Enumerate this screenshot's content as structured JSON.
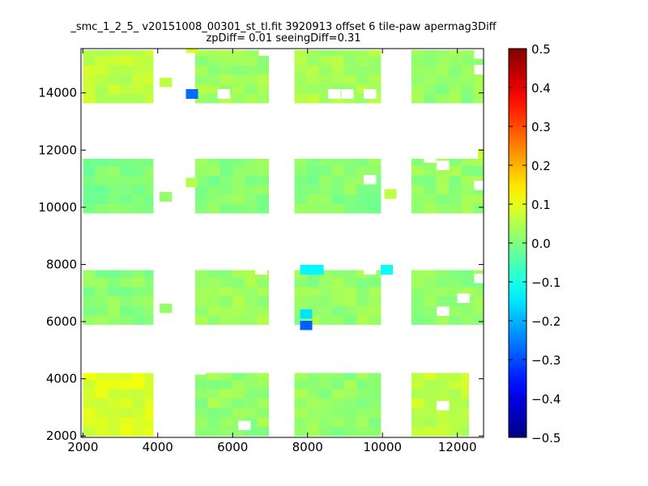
{
  "chart_data": {
    "type": "heatmap",
    "title_line1": "_smc_1_2_5_ v20151008_00301_st_tl.fit 3920913 offset 6 tile-paw apermag3Diff",
    "title_line2": "zpDiff= 0.01 seeingDiff=0.31",
    "xlabel": "",
    "ylabel": "",
    "xlim": [
      1950,
      12700
    ],
    "ylim": [
      1950,
      15550
    ],
    "x_ticks": [
      2000,
      4000,
      6000,
      8000,
      10000,
      12000
    ],
    "y_ticks": [
      2000,
      4000,
      6000,
      8000,
      10000,
      12000,
      14000
    ],
    "cell_size": 330,
    "colorbar": {
      "colormap": "jet",
      "vmin": -0.5,
      "vmax": 0.5,
      "ticks": [
        "0.5",
        "0.4",
        "0.3",
        "0.2",
        "0.1",
        "0.0",
        "−0.1",
        "−0.2",
        "−0.3",
        "−0.4",
        "−0.5"
      ]
    },
    "blocks": [
      {
        "x0": 2000,
        "x1": 3870,
        "y0": 2000,
        "y1": 4200,
        "value": 0.09
      },
      {
        "x0": 5000,
        "x1": 6960,
        "y0": 2000,
        "y1": 4200,
        "value": 0.02
      },
      {
        "x0": 7650,
        "x1": 9950,
        "y0": 2000,
        "y1": 4200,
        "value": 0.02
      },
      {
        "x0": 10780,
        "x1": 12300,
        "y0": 2000,
        "y1": 4200,
        "value": 0.06
      },
      {
        "x0": 2000,
        "x1": 3870,
        "y0": 5900,
        "y1": 7800,
        "value": 0.01
      },
      {
        "x0": 5000,
        "x1": 6960,
        "y0": 5900,
        "y1": 7800,
        "value": 0.03
      },
      {
        "x0": 7650,
        "x1": 9950,
        "y0": 5900,
        "y1": 7800,
        "value": 0.02
      },
      {
        "x0": 10780,
        "x1": 12700,
        "y0": 5900,
        "y1": 7800,
        "value": 0.02
      },
      {
        "x0": 2000,
        "x1": 3870,
        "y0": 9800,
        "y1": 11700,
        "value": 0.0
      },
      {
        "x0": 5000,
        "x1": 6960,
        "y0": 9800,
        "y1": 11700,
        "value": 0.01
      },
      {
        "x0": 7650,
        "x1": 9950,
        "y0": 9800,
        "y1": 11700,
        "value": 0.01
      },
      {
        "x0": 10780,
        "x1": 12700,
        "y0": 9800,
        "y1": 11700,
        "value": 0.02
      },
      {
        "x0": 2000,
        "x1": 3870,
        "y0": 13650,
        "y1": 15500,
        "value": 0.06
      },
      {
        "x0": 5000,
        "x1": 6960,
        "y0": 13650,
        "y1": 15500,
        "value": 0.03
      },
      {
        "x0": 7650,
        "x1": 9950,
        "y0": 13650,
        "y1": 15500,
        "value": 0.04
      },
      {
        "x0": 10780,
        "x1": 12700,
        "y0": 13650,
        "y1": 15500,
        "value": 0.02
      }
    ],
    "extra_cells": [
      {
        "x": 4750,
        "y": 13800,
        "value": -0.27
      },
      {
        "x": 7800,
        "y": 5700,
        "value": -0.28
      },
      {
        "x": 7800,
        "y": 6100,
        "value": -0.15
      },
      {
        "x": 7800,
        "y": 7650,
        "value": -0.13
      },
      {
        "x": 8100,
        "y": 7650,
        "value": -0.13
      },
      {
        "x": 9950,
        "y": 7650,
        "value": -0.12
      },
      {
        "x": 4050,
        "y": 6300,
        "value": 0.02
      },
      {
        "x": 4050,
        "y": 10200,
        "value": 0.02
      },
      {
        "x": 4050,
        "y": 14200,
        "value": 0.06
      },
      {
        "x": 4750,
        "y": 10700,
        "value": 0.05
      },
      {
        "x": 4750,
        "y": 15400,
        "value": 0.09
      },
      {
        "x": 10050,
        "y": 10300,
        "value": 0.06
      },
      {
        "x": 12550,
        "y": 11700,
        "value": 0.07
      }
    ],
    "missing_cells": [
      {
        "x": 6150,
        "y": 2200
      },
      {
        "x": 4950,
        "y": 4150
      },
      {
        "x": 6600,
        "y": 7650
      },
      {
        "x": 9500,
        "y": 7650
      },
      {
        "x": 9500,
        "y": 10800
      },
      {
        "x": 9500,
        "y": 13800
      },
      {
        "x": 10050,
        "y": 6300
      },
      {
        "x": 12450,
        "y": 10600
      },
      {
        "x": 12450,
        "y": 15200
      },
      {
        "x": 12450,
        "y": 14650
      },
      {
        "x": 11100,
        "y": 11550
      },
      {
        "x": 11450,
        "y": 11300
      },
      {
        "x": 11450,
        "y": 6200
      },
      {
        "x": 12450,
        "y": 7350
      },
      {
        "x": 12450,
        "y": 2200
      },
      {
        "x": 12450,
        "y": 2550
      },
      {
        "x": 11450,
        "y": 2900
      },
      {
        "x": 12450,
        "y": 3800
      },
      {
        "x": 12000,
        "y": 6650
      },
      {
        "x": 5600,
        "y": 13800
      },
      {
        "x": 6700,
        "y": 15300
      },
      {
        "x": 10050,
        "y": 15300
      },
      {
        "x": 8550,
        "y": 13800
      },
      {
        "x": 8900,
        "y": 13800
      }
    ]
  }
}
